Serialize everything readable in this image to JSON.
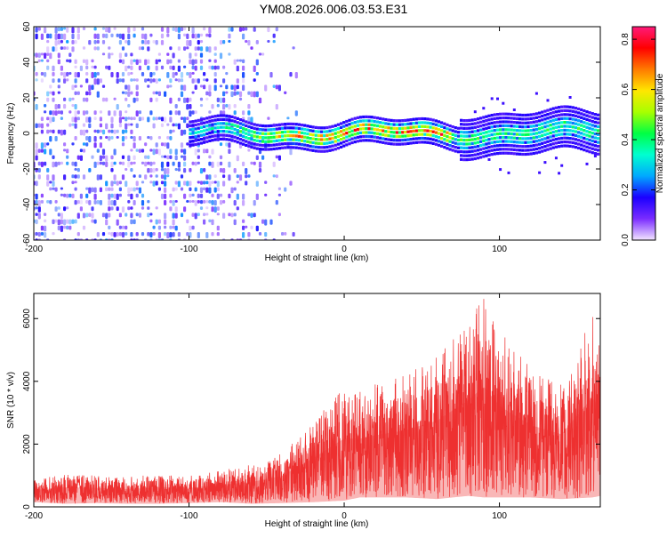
{
  "figure": {
    "title": "YM08.2026.006.03.53.E31"
  },
  "chart_data": [
    {
      "type": "heatmap",
      "title": "YM08.2026.006.03.53.E31",
      "xlabel": "Height of straight line (km)",
      "ylabel": "Frequency (Hz)",
      "xlim": [
        -200,
        165
      ],
      "ylim": [
        -60,
        60
      ],
      "x_ticks": [
        -200,
        -100,
        0,
        100
      ],
      "y_ticks": [
        -60,
        -40,
        -20,
        0,
        20,
        40,
        60
      ],
      "colorbar": {
        "label": "Normalized spectral amplitude",
        "range": [
          0,
          0.85
        ],
        "ticks": [
          0,
          0.2,
          0.4,
          0.6,
          0.8
        ],
        "tick_labels": [
          "0.0",
          "0.2",
          "0.4",
          "0.6",
          "0.8"
        ],
        "colormap": [
          "#f3e5ff",
          "#7a2cff",
          "#1b00ff",
          "#00a8ff",
          "#00ffd0",
          "#00ff44",
          "#a8ff00",
          "#ffe600",
          "#ff7a00",
          "#ff0000",
          "#ff1a7a"
        ]
      },
      "description_values": {
        "carrier_center_hz": 0,
        "carrier_band_halfwidth_hz": 7,
        "carrier_start_km": -100,
        "strongest_region_km": [
          -20,
          70
        ],
        "strongest_amplitude": 0.7,
        "noise_region_km": [
          -200,
          -30
        ],
        "noise_amplitude_range": [
          0.02,
          0.25
        ]
      }
    },
    {
      "type": "line",
      "title": "",
      "xlabel": "Height of straight line (km)",
      "ylabel": "SNR (10 * v/v)",
      "xlim": [
        -200,
        165
      ],
      "ylim": [
        0,
        6800
      ],
      "x_ticks": [
        -200,
        -100,
        0,
        100
      ],
      "y_ticks": [
        0,
        2000,
        4000,
        6000
      ],
      "series": [
        {
          "name": "SNR",
          "color": "#ee3030",
          "envelope": {
            "x": [
              -200,
              -180,
              -160,
              -140,
              -120,
              -100,
              -80,
              -60,
              -40,
              -20,
              0,
              10,
              20,
              40,
              60,
              80,
              90,
              100,
              120,
              140,
              160,
              165
            ],
            "upper": [
              850,
              1050,
              1000,
              950,
              1050,
              1000,
              1150,
              1350,
              1700,
              2700,
              3800,
              3700,
              3900,
              4200,
              4800,
              5900,
              6700,
              5600,
              4500,
              4000,
              6100,
              5300
            ],
            "lower": [
              150,
              100,
              120,
              100,
              100,
              120,
              150,
              100,
              120,
              150,
              200,
              300,
              300,
              300,
              250,
              350,
              300,
              300,
              300,
              250,
              300,
              350
            ]
          }
        }
      ]
    }
  ]
}
